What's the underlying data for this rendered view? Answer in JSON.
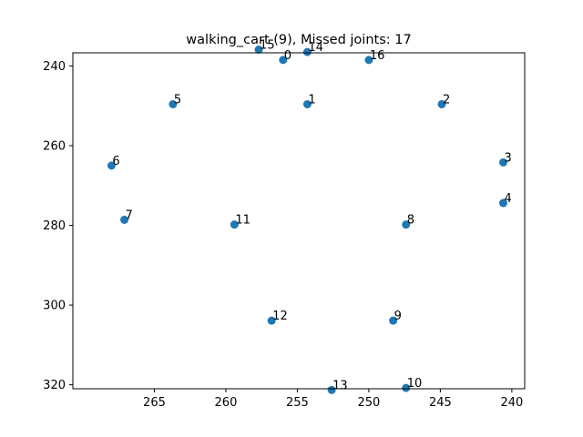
{
  "chart_data": {
    "type": "scatter",
    "title": "walking_cart (9), Missed joints: 17",
    "xlabel": "",
    "ylabel": "",
    "x_inverted": true,
    "y_inverted": true,
    "xlim": [
      270.7,
      239.1
    ],
    "ylim": [
      321.0,
      236.7
    ],
    "xticks": [
      265,
      260,
      255,
      250,
      245,
      240
    ],
    "yticks": [
      240,
      260,
      280,
      300,
      320
    ],
    "grid": false,
    "points": [
      {
        "label": "0",
        "x": 256.0,
        "y": 238.5
      },
      {
        "label": "1",
        "x": 254.3,
        "y": 249.6
      },
      {
        "label": "2",
        "x": 244.9,
        "y": 249.6
      },
      {
        "label": "3",
        "x": 240.6,
        "y": 264.2
      },
      {
        "label": "4",
        "x": 240.6,
        "y": 274.4
      },
      {
        "label": "5",
        "x": 263.7,
        "y": 249.6
      },
      {
        "label": "6",
        "x": 268.0,
        "y": 265.0
      },
      {
        "label": "7",
        "x": 267.1,
        "y": 278.6
      },
      {
        "label": "8",
        "x": 247.4,
        "y": 279.8
      },
      {
        "label": "9",
        "x": 248.3,
        "y": 303.9
      },
      {
        "label": "10",
        "x": 247.4,
        "y": 320.8
      },
      {
        "label": "11",
        "x": 259.4,
        "y": 279.8
      },
      {
        "label": "12",
        "x": 256.8,
        "y": 303.9
      },
      {
        "label": "13",
        "x": 252.6,
        "y": 321.3
      },
      {
        "label": "14",
        "x": 254.3,
        "y": 236.5
      },
      {
        "label": "15",
        "x": 257.7,
        "y": 235.9
      },
      {
        "label": "16",
        "x": 250.0,
        "y": 238.5
      }
    ],
    "colors": {
      "marker": "#1f77b4"
    }
  }
}
